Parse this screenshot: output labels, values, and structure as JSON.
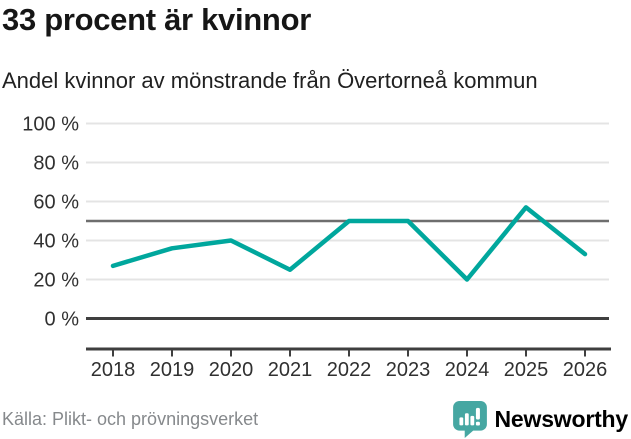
{
  "header": {
    "title": "33 procent är kvinnor",
    "subtitle": "Andel kvinnor av mönstrande från Övertorneå kommun"
  },
  "chart_data": {
    "type": "line",
    "title": "33 procent är kvinnor",
    "subtitle": "Andel kvinnor av mönstrande från Övertorneå kommun",
    "categories": [
      "2018",
      "2019",
      "2020",
      "2021",
      "2022",
      "2023",
      "2024",
      "2025",
      "2026"
    ],
    "series": [
      {
        "name": "Andel kvinnor av mönstrande",
        "values": [
          27,
          36,
          40,
          25,
          50,
          50,
          20,
          57,
          33
        ]
      }
    ],
    "xlabel": "",
    "ylabel": "",
    "ylim": [
      0,
      100
    ],
    "y_ticks": [
      0,
      20,
      40,
      60,
      80,
      100
    ],
    "y_tick_labels": [
      "0 %",
      "20 %",
      "40 %",
      "60 %",
      "80 %",
      "100 %"
    ],
    "reference_line_y": 50,
    "grid": "horizontal",
    "legend": "none",
    "line_color": "#00a79d"
  },
  "footer": {
    "source": "Källa: Plikt- och prövningsverket",
    "brand": "Newsworthy"
  },
  "colors": {
    "accent_line": "#00a79d",
    "grid_light": "#e4e4e4",
    "reference_line": "#6e6e6e",
    "axis_dark": "#3f3f3f",
    "tick_text": "#303030",
    "source_text": "#86898c",
    "logo_bubble": "#46a7a2",
    "logo_text": "#3aa19c"
  }
}
